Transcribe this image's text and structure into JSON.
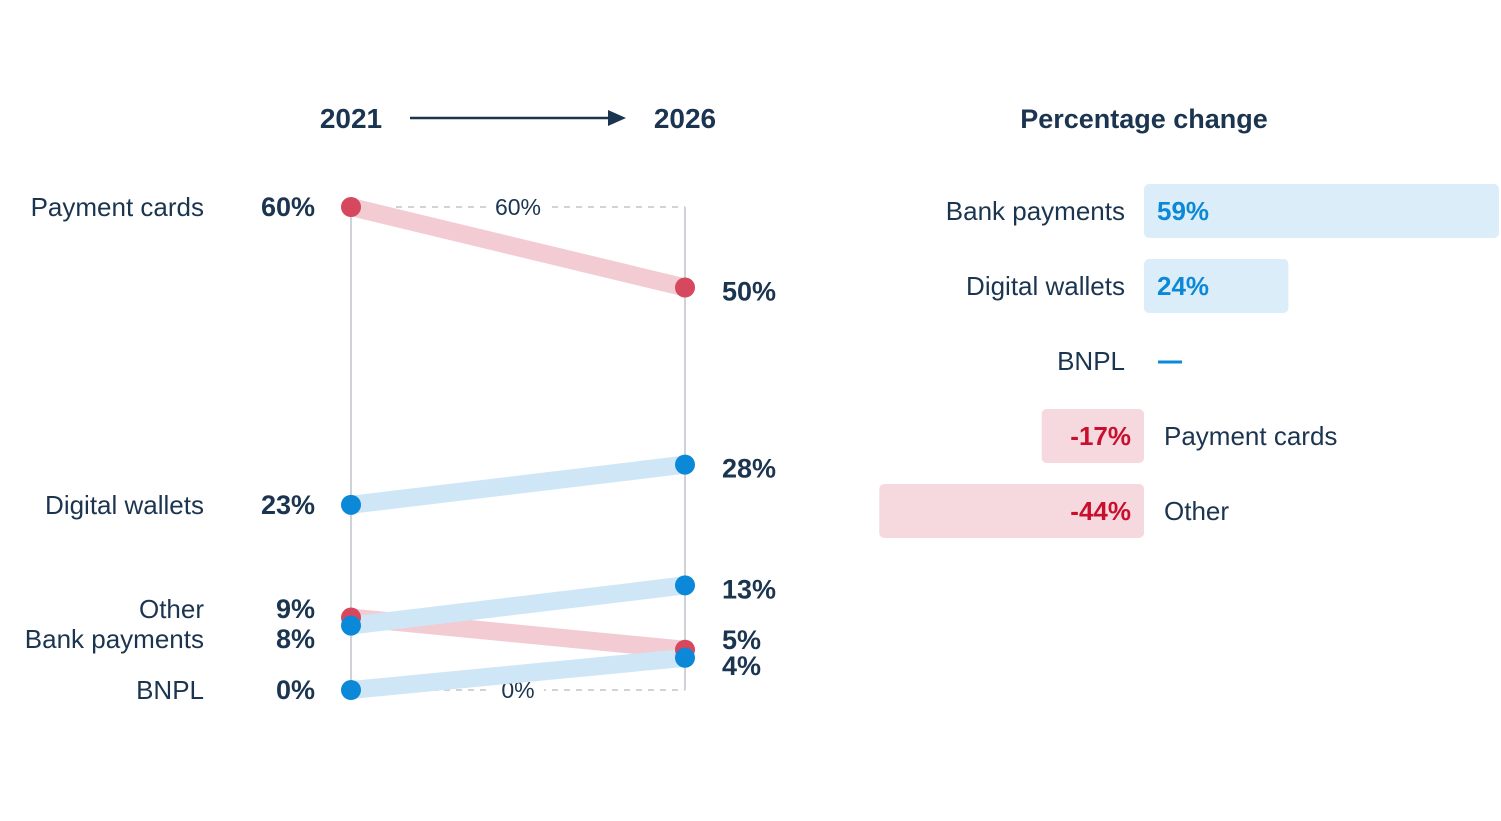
{
  "colors": {
    "text": "#1b3550",
    "decline": "#d6485e",
    "decline_line": "#f2cbd3",
    "growth": "#0b89d8",
    "growth_line": "#cfe6f6",
    "pos_bar": "#dbedf8",
    "pos_text": "#0b89d8",
    "neg_bar": "#f6d9de",
    "neg_text": "#c8102e",
    "guide": "#cfd3d8"
  },
  "header": {
    "start_year": "2021",
    "end_year": "2026",
    "arrow_icon": "right-arrow-icon",
    "change_title": "Percentage change"
  },
  "chart_data": [
    {
      "type": "slope",
      "title": "",
      "x": [
        "2021",
        "2026"
      ],
      "ylim": [
        0,
        60
      ],
      "scale_labels": {
        "top": "60%",
        "bottom": "0%"
      },
      "series": [
        {
          "name": "Payment cards",
          "values": [
            60,
            50
          ],
          "start_label": "60%",
          "end_label": "50%",
          "trend": "decline"
        },
        {
          "name": "Digital wallets",
          "values": [
            23,
            28
          ],
          "start_label": "23%",
          "end_label": "28%",
          "trend": "growth"
        },
        {
          "name": "Other",
          "values": [
            9,
            5
          ],
          "start_label": "9%",
          "end_label": "5%",
          "trend": "decline"
        },
        {
          "name": "Bank payments",
          "values": [
            8,
            13
          ],
          "start_label": "8%",
          "end_label": "13%",
          "trend": "growth"
        },
        {
          "name": "BNPL",
          "values": [
            0,
            4
          ],
          "start_label": "0%",
          "end_label": "4%",
          "trend": "growth"
        }
      ]
    },
    {
      "type": "bar",
      "orientation": "horizontal",
      "title": "Percentage change",
      "categories": [
        "Bank payments",
        "Digital wallets",
        "BNPL",
        "Payment cards",
        "Other"
      ],
      "values": [
        59,
        24,
        null,
        -17,
        -44
      ],
      "labels": [
        "59%",
        "24%",
        "—",
        "-17%",
        "-44%"
      ]
    }
  ]
}
